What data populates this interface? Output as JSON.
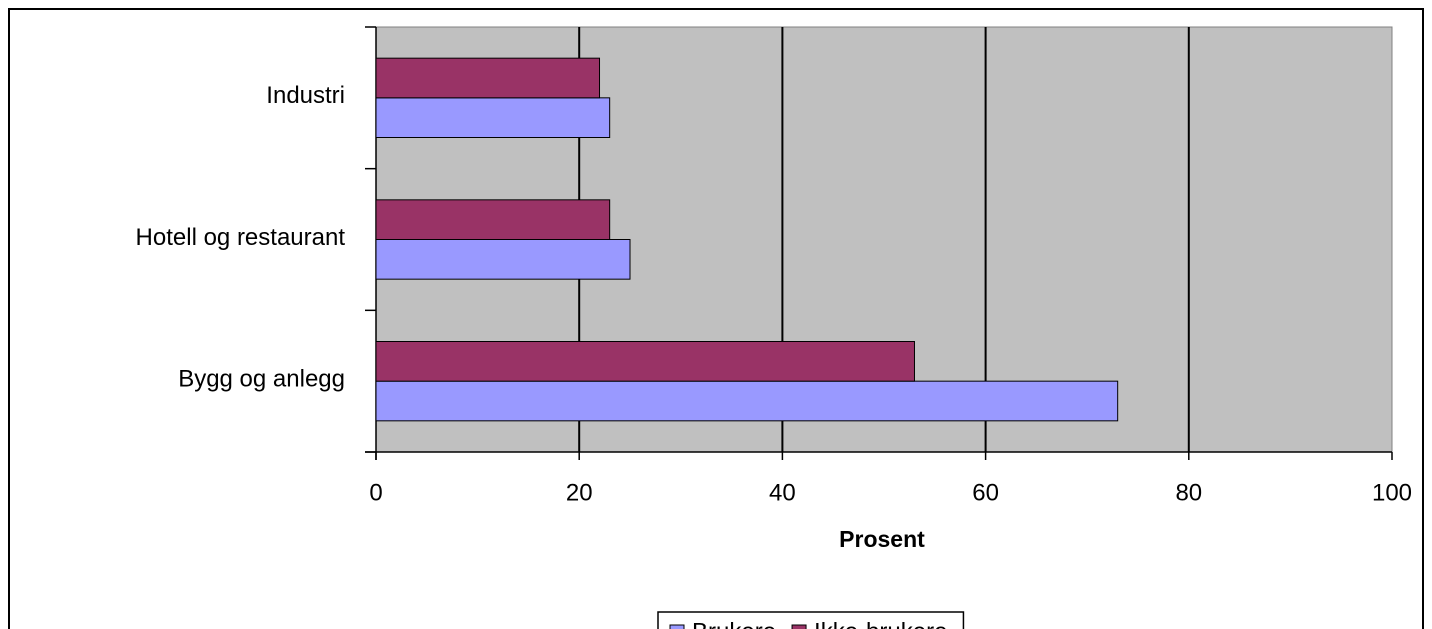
{
  "chart_data": {
    "type": "bar",
    "orientation": "horizontal",
    "categories": [
      "Industri",
      "Hotell og restaurant",
      "Bygg og anlegg"
    ],
    "series": [
      {
        "name": "Brukere",
        "color": "#9999ff",
        "values": [
          23,
          25,
          73
        ]
      },
      {
        "name": "Ikke-brukere",
        "color": "#993366",
        "values": [
          22,
          23,
          53
        ]
      }
    ],
    "xlabel": "Prosent",
    "xlim": [
      0,
      100
    ],
    "xticks": [
      0,
      20,
      40,
      60,
      80,
      100
    ],
    "grid": true,
    "legend": "bottom"
  }
}
